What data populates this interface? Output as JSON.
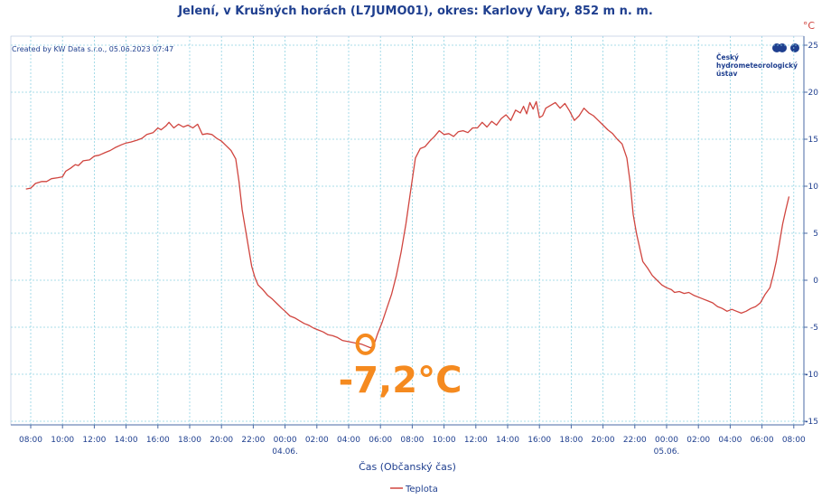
{
  "chart_data": {
    "type": "line",
    "title": "Jelení, v Krušných horách (L7JUMO01), okres: Karlovy Vary, 852 m n. m.",
    "credit": "Created by KW Data s.r.o., 05.06.2023 07:47",
    "logo_lines": [
      "Český",
      "hydrometeorologický",
      "ústav"
    ],
    "y_unit": "°C",
    "xlabel": "Čas (Občanský čas)",
    "ylim": [
      -15,
      25
    ],
    "y_ticks": [
      25,
      20,
      15,
      10,
      5,
      0,
      -5,
      -10,
      -15
    ],
    "y_tick_labels": [
      "25",
      "20",
      "15",
      "10",
      "5",
      "0",
      "-5",
      "-10",
      "-15"
    ],
    "x_ticks": [
      {
        "hour": 8,
        "label": "08:00"
      },
      {
        "hour": 10,
        "label": "10:00"
      },
      {
        "hour": 12,
        "label": "12:00"
      },
      {
        "hour": 14,
        "label": "14:00"
      },
      {
        "hour": 16,
        "label": "16:00"
      },
      {
        "hour": 18,
        "label": "18:00"
      },
      {
        "hour": 20,
        "label": "20:00"
      },
      {
        "hour": 22,
        "label": "22:00"
      },
      {
        "hour": 24,
        "label": "00:00"
      },
      {
        "hour": 26,
        "label": "02:00"
      },
      {
        "hour": 28,
        "label": "04:00"
      },
      {
        "hour": 30,
        "label": "06:00"
      },
      {
        "hour": 32,
        "label": "08:00"
      },
      {
        "hour": 34,
        "label": "10:00"
      },
      {
        "hour": 36,
        "label": "12:00"
      },
      {
        "hour": 38,
        "label": "14:00"
      },
      {
        "hour": 40,
        "label": "16:00"
      },
      {
        "hour": 42,
        "label": "18:00"
      },
      {
        "hour": 44,
        "label": "20:00"
      },
      {
        "hour": 46,
        "label": "22:00"
      },
      {
        "hour": 48,
        "label": "00:00"
      },
      {
        "hour": 50,
        "label": "02:00"
      },
      {
        "hour": 52,
        "label": "04:00"
      },
      {
        "hour": 54,
        "label": "06:00"
      },
      {
        "hour": 56,
        "label": "08:00"
      }
    ],
    "date_labels": [
      {
        "hour": 24,
        "label": "04.06."
      },
      {
        "hour": 48,
        "label": "05.06."
      }
    ],
    "grid": true,
    "legend_position": "bottom-center",
    "series": [
      {
        "name": "Teplota",
        "color": "#d0453f",
        "points": [
          [
            7.7,
            9.7
          ],
          [
            8.0,
            9.8
          ],
          [
            8.3,
            10.3
          ],
          [
            8.7,
            10.5
          ],
          [
            9.0,
            10.5
          ],
          [
            9.3,
            10.8
          ],
          [
            9.7,
            10.9
          ],
          [
            10.0,
            11.0
          ],
          [
            10.2,
            11.6
          ],
          [
            10.5,
            11.9
          ],
          [
            10.8,
            12.3
          ],
          [
            11.0,
            12.2
          ],
          [
            11.3,
            12.7
          ],
          [
            11.7,
            12.8
          ],
          [
            12.0,
            13.2
          ],
          [
            12.3,
            13.3
          ],
          [
            12.7,
            13.6
          ],
          [
            13.0,
            13.8
          ],
          [
            13.3,
            14.1
          ],
          [
            13.7,
            14.4
          ],
          [
            14.0,
            14.6
          ],
          [
            14.3,
            14.7
          ],
          [
            14.7,
            14.9
          ],
          [
            15.0,
            15.1
          ],
          [
            15.3,
            15.5
          ],
          [
            15.7,
            15.7
          ],
          [
            16.0,
            16.2
          ],
          [
            16.2,
            16.0
          ],
          [
            16.5,
            16.4
          ],
          [
            16.7,
            16.8
          ],
          [
            17.0,
            16.2
          ],
          [
            17.3,
            16.6
          ],
          [
            17.6,
            16.3
          ],
          [
            17.9,
            16.5
          ],
          [
            18.2,
            16.2
          ],
          [
            18.5,
            16.6
          ],
          [
            18.8,
            15.5
          ],
          [
            19.1,
            15.6
          ],
          [
            19.4,
            15.5
          ],
          [
            19.7,
            15.1
          ],
          [
            20.0,
            14.8
          ],
          [
            20.3,
            14.3
          ],
          [
            20.6,
            13.8
          ],
          [
            20.9,
            12.9
          ],
          [
            21.1,
            10.5
          ],
          [
            21.3,
            7.5
          ],
          [
            21.5,
            5.5
          ],
          [
            21.7,
            3.5
          ],
          [
            21.9,
            1.5
          ],
          [
            22.1,
            0.3
          ],
          [
            22.3,
            -0.5
          ],
          [
            22.6,
            -1.0
          ],
          [
            22.9,
            -1.6
          ],
          [
            23.2,
            -2.0
          ],
          [
            23.5,
            -2.5
          ],
          [
            23.8,
            -3.0
          ],
          [
            24.0,
            -3.3
          ],
          [
            24.3,
            -3.8
          ],
          [
            24.6,
            -4.0
          ],
          [
            24.9,
            -4.3
          ],
          [
            25.2,
            -4.6
          ],
          [
            25.5,
            -4.8
          ],
          [
            25.8,
            -5.1
          ],
          [
            26.1,
            -5.3
          ],
          [
            26.4,
            -5.5
          ],
          [
            26.7,
            -5.8
          ],
          [
            27.0,
            -5.9
          ],
          [
            27.3,
            -6.1
          ],
          [
            27.6,
            -6.4
          ],
          [
            27.9,
            -6.5
          ],
          [
            28.2,
            -6.6
          ],
          [
            28.5,
            -6.7
          ],
          [
            28.8,
            -6.8
          ],
          [
            29.1,
            -7.0
          ],
          [
            29.4,
            -7.2
          ],
          [
            29.6,
            -6.8
          ],
          [
            29.8,
            -5.8
          ],
          [
            30.1,
            -4.5
          ],
          [
            30.4,
            -3.0
          ],
          [
            30.7,
            -1.5
          ],
          [
            31.0,
            0.5
          ],
          [
            31.3,
            3.0
          ],
          [
            31.6,
            6.0
          ],
          [
            31.9,
            9.5
          ],
          [
            32.2,
            13.0
          ],
          [
            32.5,
            14.0
          ],
          [
            32.8,
            14.2
          ],
          [
            33.1,
            14.8
          ],
          [
            33.4,
            15.3
          ],
          [
            33.7,
            15.9
          ],
          [
            34.0,
            15.5
          ],
          [
            34.3,
            15.6
          ],
          [
            34.6,
            15.3
          ],
          [
            34.9,
            15.8
          ],
          [
            35.2,
            15.9
          ],
          [
            35.5,
            15.7
          ],
          [
            35.8,
            16.2
          ],
          [
            36.1,
            16.2
          ],
          [
            36.4,
            16.8
          ],
          [
            36.7,
            16.3
          ],
          [
            37.0,
            16.9
          ],
          [
            37.3,
            16.5
          ],
          [
            37.6,
            17.2
          ],
          [
            37.9,
            17.6
          ],
          [
            38.2,
            17.0
          ],
          [
            38.5,
            18.1
          ],
          [
            38.8,
            17.8
          ],
          [
            39.0,
            18.5
          ],
          [
            39.2,
            17.7
          ],
          [
            39.4,
            18.9
          ],
          [
            39.6,
            18.2
          ],
          [
            39.8,
            19.0
          ],
          [
            40.0,
            17.3
          ],
          [
            40.2,
            17.5
          ],
          [
            40.4,
            18.3
          ],
          [
            40.7,
            18.6
          ],
          [
            41.0,
            18.9
          ],
          [
            41.3,
            18.3
          ],
          [
            41.6,
            18.8
          ],
          [
            41.9,
            18.0
          ],
          [
            42.2,
            17.0
          ],
          [
            42.5,
            17.5
          ],
          [
            42.8,
            18.3
          ],
          [
            43.1,
            17.8
          ],
          [
            43.4,
            17.5
          ],
          [
            43.7,
            17.0
          ],
          [
            44.0,
            16.5
          ],
          [
            44.3,
            16.0
          ],
          [
            44.6,
            15.6
          ],
          [
            44.9,
            15.0
          ],
          [
            45.2,
            14.5
          ],
          [
            45.5,
            13.0
          ],
          [
            45.7,
            10.5
          ],
          [
            45.9,
            7.0
          ],
          [
            46.1,
            5.0
          ],
          [
            46.3,
            3.5
          ],
          [
            46.5,
            2.0
          ],
          [
            46.8,
            1.3
          ],
          [
            47.1,
            0.5
          ],
          [
            47.4,
            0.0
          ],
          [
            47.7,
            -0.5
          ],
          [
            48.0,
            -0.8
          ],
          [
            48.3,
            -1.0
          ],
          [
            48.5,
            -1.3
          ],
          [
            48.8,
            -1.2
          ],
          [
            49.1,
            -1.4
          ],
          [
            49.4,
            -1.3
          ],
          [
            49.7,
            -1.6
          ],
          [
            50.0,
            -1.8
          ],
          [
            50.3,
            -2.0
          ],
          [
            50.6,
            -2.2
          ],
          [
            50.9,
            -2.4
          ],
          [
            51.2,
            -2.8
          ],
          [
            51.5,
            -3.0
          ],
          [
            51.8,
            -3.3
          ],
          [
            52.1,
            -3.1
          ],
          [
            52.4,
            -3.3
          ],
          [
            52.7,
            -3.5
          ],
          [
            53.0,
            -3.3
          ],
          [
            53.3,
            -3.0
          ],
          [
            53.6,
            -2.8
          ],
          [
            53.9,
            -2.4
          ],
          [
            54.2,
            -1.5
          ],
          [
            54.5,
            -0.8
          ],
          [
            54.7,
            0.5
          ],
          [
            54.9,
            2.0
          ],
          [
            55.1,
            4.0
          ],
          [
            55.3,
            6.0
          ],
          [
            55.5,
            7.5
          ],
          [
            55.7,
            8.9
          ]
        ]
      }
    ],
    "annotation": {
      "text": "-7,2°C",
      "at": [
        29.4,
        -7.2
      ]
    }
  }
}
